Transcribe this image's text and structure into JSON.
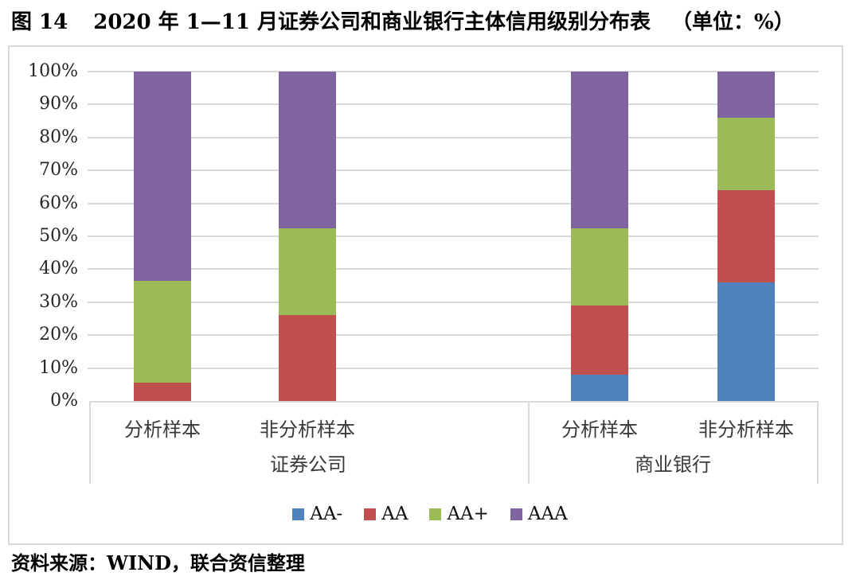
{
  "title": {
    "figure_label": "图 14",
    "text": "2020 年 1—11 月证券公司和商业银行主体信用级别分布表",
    "unit": "（单位：%）"
  },
  "chart_data": {
    "type": "bar",
    "stacked": true,
    "orientation": "vertical",
    "unit": "%",
    "categories": [
      "分析样本",
      "非分析样本",
      "分析样本",
      "非分析样本"
    ],
    "groups": [
      {
        "label": "证券公司",
        "category_indexes": [
          0,
          1
        ]
      },
      {
        "label": "商业银行",
        "category_indexes": [
          2,
          3
        ]
      }
    ],
    "series": [
      {
        "name": "AA-",
        "color": "#4F81BD",
        "values": [
          0,
          0,
          8,
          36
        ]
      },
      {
        "name": "AA",
        "color": "#C0504D",
        "values": [
          5.5,
          26,
          21,
          28
        ]
      },
      {
        "name": "AA+",
        "color": "#9BBB59",
        "values": [
          31,
          26.5,
          23.5,
          22
        ]
      },
      {
        "name": "AAA",
        "color": "#8064A2",
        "values": [
          63.5,
          47.5,
          47.5,
          14
        ]
      }
    ],
    "ylim": [
      0,
      100
    ],
    "yticks": [
      "100%",
      "90%",
      "80%",
      "70%",
      "60%",
      "50%",
      "40%",
      "30%",
      "20%",
      "10%",
      "0%"
    ],
    "grid": true,
    "legend_position": "bottom"
  },
  "source": "资料来源：WIND，联合资信整理",
  "colors": {
    "gridline": "#D9D9D9",
    "frame_border": "#D9D9D9",
    "axis_text": "#3A3A3A"
  }
}
